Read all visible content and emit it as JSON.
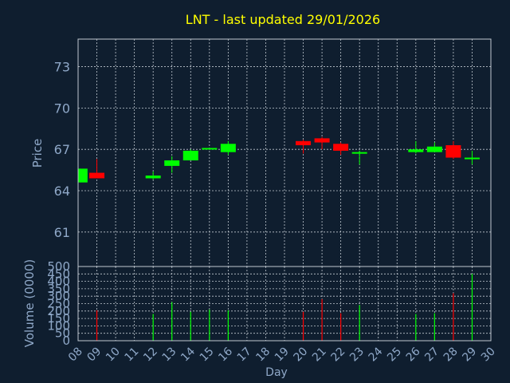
{
  "title": "LNT - last updated 29/01/2026",
  "colors": {
    "background": "#0f1e2f",
    "title": "#ffff00",
    "axis_text": "#8fa8c8",
    "axis_title": "#8fa8c8",
    "grid": "#c0c8d0",
    "frame": "#c0c8d0",
    "up": "#00ff00",
    "down": "#ff0000"
  },
  "chart_data": [
    {
      "type": "candlestick",
      "ylabel": "Price",
      "ylim": [
        58.5,
        75
      ],
      "yticks": [
        61,
        64,
        67,
        70,
        73
      ],
      "xlabel": "",
      "grid": true,
      "candles": [
        {
          "day": 8.1,
          "open": 64.6,
          "high": 65.6,
          "low": 64.6,
          "close": 65.6
        },
        {
          "day": 9,
          "open": 65.3,
          "high": 66.3,
          "low": 64.9,
          "close": 64.9
        },
        {
          "day": 12,
          "open": 64.9,
          "high": 65.4,
          "low": 64.8,
          "close": 65.1
        },
        {
          "day": 13,
          "open": 65.8,
          "high": 66.5,
          "low": 65.3,
          "close": 66.2
        },
        {
          "day": 14,
          "open": 66.2,
          "high": 67.0,
          "low": 66.2,
          "close": 66.9
        },
        {
          "day": 15,
          "open": 67.0,
          "high": 67.1,
          "low": 67.0,
          "close": 67.1
        },
        {
          "day": 16,
          "open": 66.8,
          "high": 67.6,
          "low": 66.6,
          "close": 67.4
        },
        {
          "day": 20,
          "open": 67.6,
          "high": 67.7,
          "low": 66.7,
          "close": 67.3
        },
        {
          "day": 21,
          "open": 67.8,
          "high": 67.9,
          "low": 67.0,
          "close": 67.5
        },
        {
          "day": 22,
          "open": 67.4,
          "high": 67.5,
          "low": 66.6,
          "close": 66.9
        },
        {
          "day": 23,
          "open": 66.7,
          "high": 66.9,
          "low": 65.9,
          "close": 66.8
        },
        {
          "day": 26,
          "open": 66.8,
          "high": 67.6,
          "low": 66.7,
          "close": 67.0
        },
        {
          "day": 27,
          "open": 66.8,
          "high": 67.5,
          "low": 66.8,
          "close": 67.2
        },
        {
          "day": 28,
          "open": 67.3,
          "high": 67.6,
          "low": 66.3,
          "close": 66.4
        },
        {
          "day": 29,
          "open": 66.3,
          "high": 66.9,
          "low": 65.9,
          "close": 66.4
        }
      ]
    },
    {
      "type": "bar",
      "ylabel": "Volume (0000)",
      "xlabel": "Day",
      "ylim": [
        0,
        500
      ],
      "yticks": [
        0,
        50,
        100,
        150,
        200,
        250,
        300,
        350,
        400,
        450,
        500
      ],
      "xlim": [
        8,
        30
      ],
      "xticks": [
        "08",
        "09",
        "10",
        "11",
        "12",
        "13",
        "14",
        "15",
        "16",
        "17",
        "18",
        "19",
        "20",
        "21",
        "22",
        "23",
        "24",
        "25",
        "26",
        "27",
        "28",
        "29",
        "30"
      ],
      "grid": true,
      "bars": [
        {
          "day": 9,
          "value": 205,
          "direction": "down"
        },
        {
          "day": 12,
          "value": 180,
          "direction": "up"
        },
        {
          "day": 13,
          "value": 260,
          "direction": "up"
        },
        {
          "day": 14,
          "value": 195,
          "direction": "up"
        },
        {
          "day": 15,
          "value": 210,
          "direction": "up"
        },
        {
          "day": 16,
          "value": 205,
          "direction": "up"
        },
        {
          "day": 20,
          "value": 195,
          "direction": "down"
        },
        {
          "day": 21,
          "value": 280,
          "direction": "down"
        },
        {
          "day": 22,
          "value": 185,
          "direction": "down"
        },
        {
          "day": 23,
          "value": 240,
          "direction": "up"
        },
        {
          "day": 26,
          "value": 180,
          "direction": "up"
        },
        {
          "day": 27,
          "value": 185,
          "direction": "up"
        },
        {
          "day": 28,
          "value": 320,
          "direction": "down"
        },
        {
          "day": 29,
          "value": 450,
          "direction": "up"
        }
      ]
    }
  ]
}
